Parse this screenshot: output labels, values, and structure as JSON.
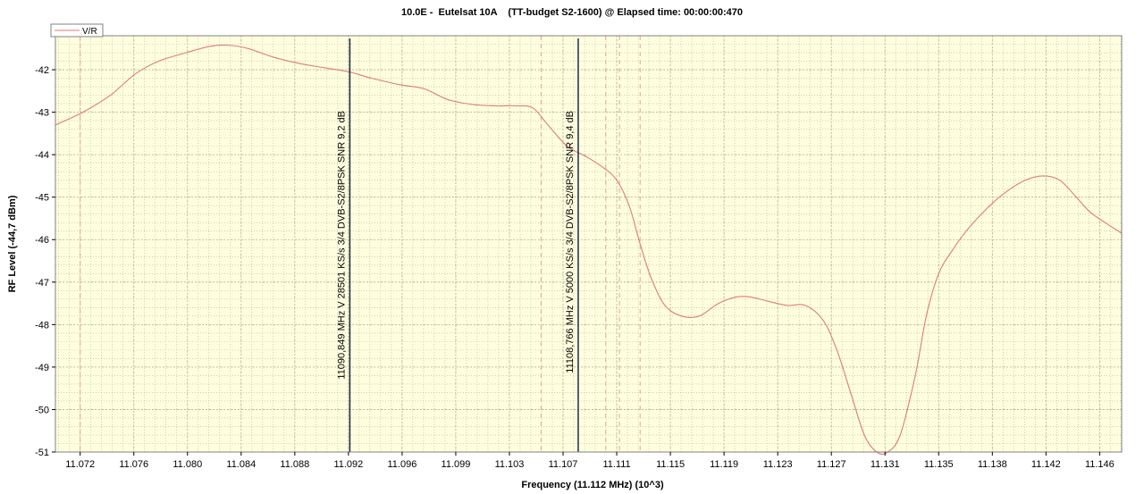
{
  "page": {
    "title": "10.0E -  Eutelsat 10A    (TT-budget S2-1600) @ Elapsed time: 00:00:00:470"
  },
  "chart_data": {
    "type": "line",
    "title": "10.0E -  Eutelsat 10A    (TT-budget S2-1600) @ Elapsed time: 00:00:00:470",
    "xlabel": "Frequency (11.112 MHz) (10^3)",
    "ylabel": "RF Level (-44,7 dBm)",
    "xlim": [
      11.07,
      11.1475
    ],
    "ylim": [
      -51,
      -41.2
    ],
    "x_ticks": [
      "11.072",
      "11.076",
      "11.080",
      "11.084",
      "11.088",
      "11.092",
      "11.096",
      "11.099",
      "11.103",
      "11.107",
      "11.111",
      "11.115",
      "11.119",
      "11.123",
      "11.127",
      "11.131",
      "11.135",
      "11.138",
      "11.142",
      "11.146"
    ],
    "x_tick_values": [
      11.0718,
      11.0757,
      11.0796,
      11.0835,
      11.0874,
      11.0913,
      11.0952,
      11.0991,
      11.103,
      11.1069,
      11.1108,
      11.1147,
      11.1186,
      11.1225,
      11.1264,
      11.1303,
      11.1342,
      11.1381,
      11.142,
      11.1459
    ],
    "y_ticks": [
      -42,
      -43,
      -44,
      -45,
      -46,
      -47,
      -48,
      -49,
      -50,
      -51
    ],
    "grid": true,
    "legend_position": "top-left",
    "background_color": "#ffffe0",
    "colors": {
      "series": "#e07a7a",
      "marker": "#1a2a4a",
      "dashed": "#e8a0a0",
      "grid": "#b4b48c"
    },
    "series": [
      {
        "name": "V/R",
        "x": [
          11.07,
          11.072,
          11.074,
          11.0758,
          11.0775,
          11.0795,
          11.0812,
          11.0825,
          11.084,
          11.0858,
          11.0877,
          11.0895,
          11.0913,
          11.093,
          11.095,
          11.0968,
          11.0985,
          11.1003,
          11.102,
          11.1035,
          11.1047,
          11.1058,
          11.1072,
          11.1086,
          11.1098,
          11.1108,
          11.1117,
          11.1125,
          11.1133,
          11.1143,
          11.1155,
          11.1168,
          11.1182,
          11.1195,
          11.1205,
          11.1218,
          11.1232,
          11.1245,
          11.1258,
          11.1268,
          11.1278,
          11.1288,
          11.1297,
          11.1305,
          11.1314,
          11.1325,
          11.1333,
          11.1342,
          11.1352,
          11.1362,
          11.1376,
          11.139,
          11.1405,
          11.1418,
          11.143,
          11.1442,
          11.1452,
          11.1463,
          11.1475
        ],
        "values": [
          -43.3,
          -43.0,
          -42.6,
          -42.1,
          -41.8,
          -41.6,
          -41.45,
          -41.42,
          -41.5,
          -41.7,
          -41.85,
          -41.95,
          -42.05,
          -42.2,
          -42.35,
          -42.45,
          -42.7,
          -42.82,
          -42.85,
          -42.85,
          -42.9,
          -43.3,
          -43.8,
          -44.05,
          -44.3,
          -44.6,
          -45.2,
          -46.1,
          -46.9,
          -47.55,
          -47.8,
          -47.8,
          -47.5,
          -47.35,
          -47.35,
          -47.45,
          -47.55,
          -47.55,
          -47.9,
          -48.6,
          -49.6,
          -50.6,
          -51.0,
          -51.0,
          -50.6,
          -49.2,
          -47.8,
          -46.8,
          -46.25,
          -45.8,
          -45.3,
          -44.9,
          -44.6,
          -44.5,
          -44.6,
          -45.0,
          -45.35,
          -45.6,
          -45.85
        ]
      }
    ],
    "marker_lines": [
      11.0914,
      11.108
    ],
    "dashed_lines": [
      11.0718,
      11.1053,
      11.11,
      11.111,
      11.1125
    ],
    "annotations": [
      {
        "text": "11090,849 MHz V 28501 KS/s 3/4 DVB-S2/8PSK SNR 9,2 dB",
        "x": 11.0914
      },
      {
        "text": "11108,766 MHz V 5000 KS/s 3/4 DVB-S2/8PSK SNR 9,4 dB",
        "x": 11.108
      }
    ]
  }
}
